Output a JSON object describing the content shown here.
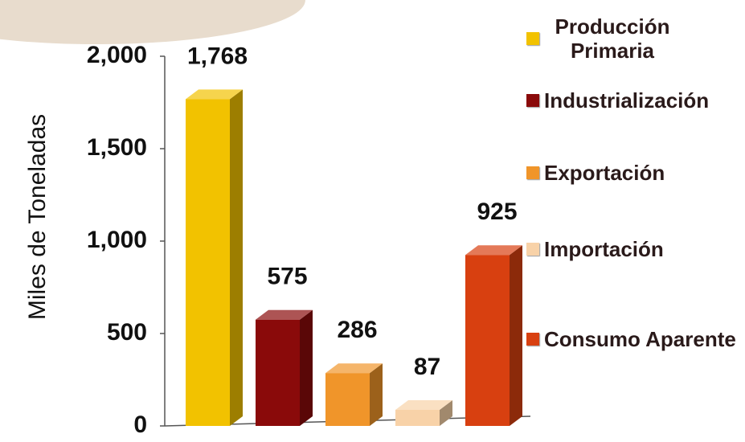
{
  "chart_data": {
    "type": "bar3d",
    "y_label": "Miles de Toneladas",
    "ylim": [
      0,
      2000
    ],
    "yticks": [
      0,
      500,
      {
        "value": 1000,
        "label": "1,000"
      },
      {
        "value": 1500,
        "label": "1,500"
      },
      {
        "value": 2000,
        "label": "2,000"
      }
    ],
    "grid": false,
    "legend_position": "right",
    "series": [
      {
        "name": "Producción Primaria",
        "color": "#f2c200",
        "values": [
          1768
        ],
        "value_labels": [
          "1,768"
        ]
      },
      {
        "name": "Industrialización",
        "color": "#8a0a0a",
        "values": [
          575
        ]
      },
      {
        "name": "Exportación",
        "color": "#f0952a",
        "values": [
          286
        ]
      },
      {
        "name": "Importación",
        "color": "#f8d2a8",
        "values": [
          87
        ]
      },
      {
        "name": "Consumo Aparente",
        "color": "#d84010",
        "values": [
          925
        ]
      }
    ]
  }
}
